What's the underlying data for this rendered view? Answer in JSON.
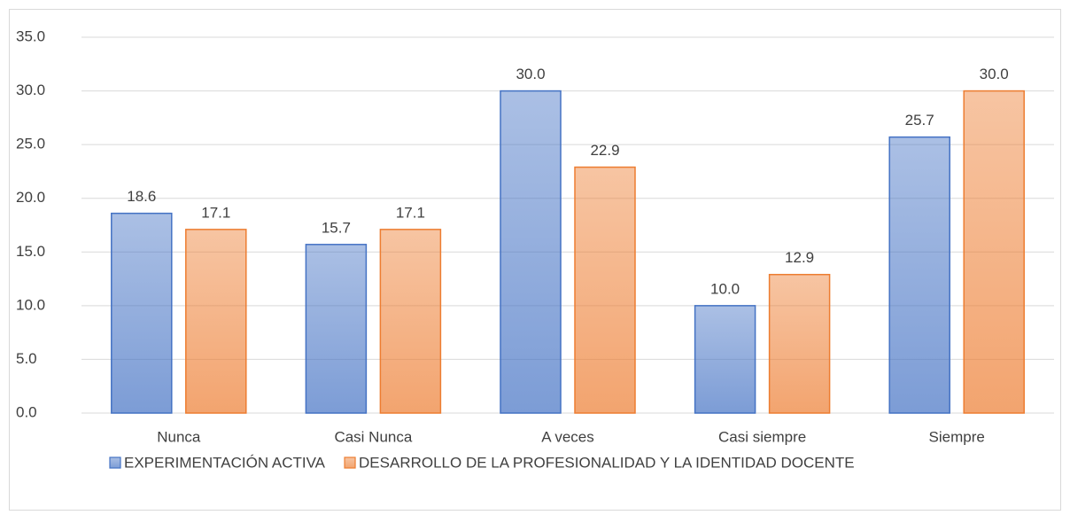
{
  "chart_data": {
    "type": "bar",
    "categories": [
      "Nunca",
      "Casi Nunca",
      "A veces",
      "Casi siempre",
      "Siempre"
    ],
    "series": [
      {
        "name": "EXPERIMENTACIÓN ACTIVA",
        "color": "#4472c4",
        "values": [
          18.6,
          15.7,
          30,
          10,
          25.7
        ],
        "value_labels": [
          "18.6",
          "15.7",
          "30.0",
          "10.0",
          "25.7"
        ]
      },
      {
        "name": "DESARROLLO DE LA PROFESIONALIDAD Y LA IDENTIDAD DOCENTE",
        "color": "#ed7d31",
        "values": [
          17.1,
          17.1,
          22.9,
          12.9,
          30
        ],
        "value_labels": [
          "17.1",
          "17.1",
          "22.9",
          "12.9",
          "30.0"
        ]
      }
    ],
    "ylim": [
      0,
      35
    ],
    "yticks": [
      {
        "value": 0,
        "label": "0.0"
      },
      {
        "value": 5,
        "label": "5.0"
      },
      {
        "value": 10,
        "label": "10.0"
      },
      {
        "value": 15,
        "label": "15.0"
      },
      {
        "value": 20,
        "label": "20.0"
      },
      {
        "value": 25,
        "label": "25.0"
      },
      {
        "value": 30,
        "label": "30.0"
      },
      {
        "value": 35,
        "label": "35.0"
      }
    ],
    "grid": true,
    "legend": "bottom"
  }
}
